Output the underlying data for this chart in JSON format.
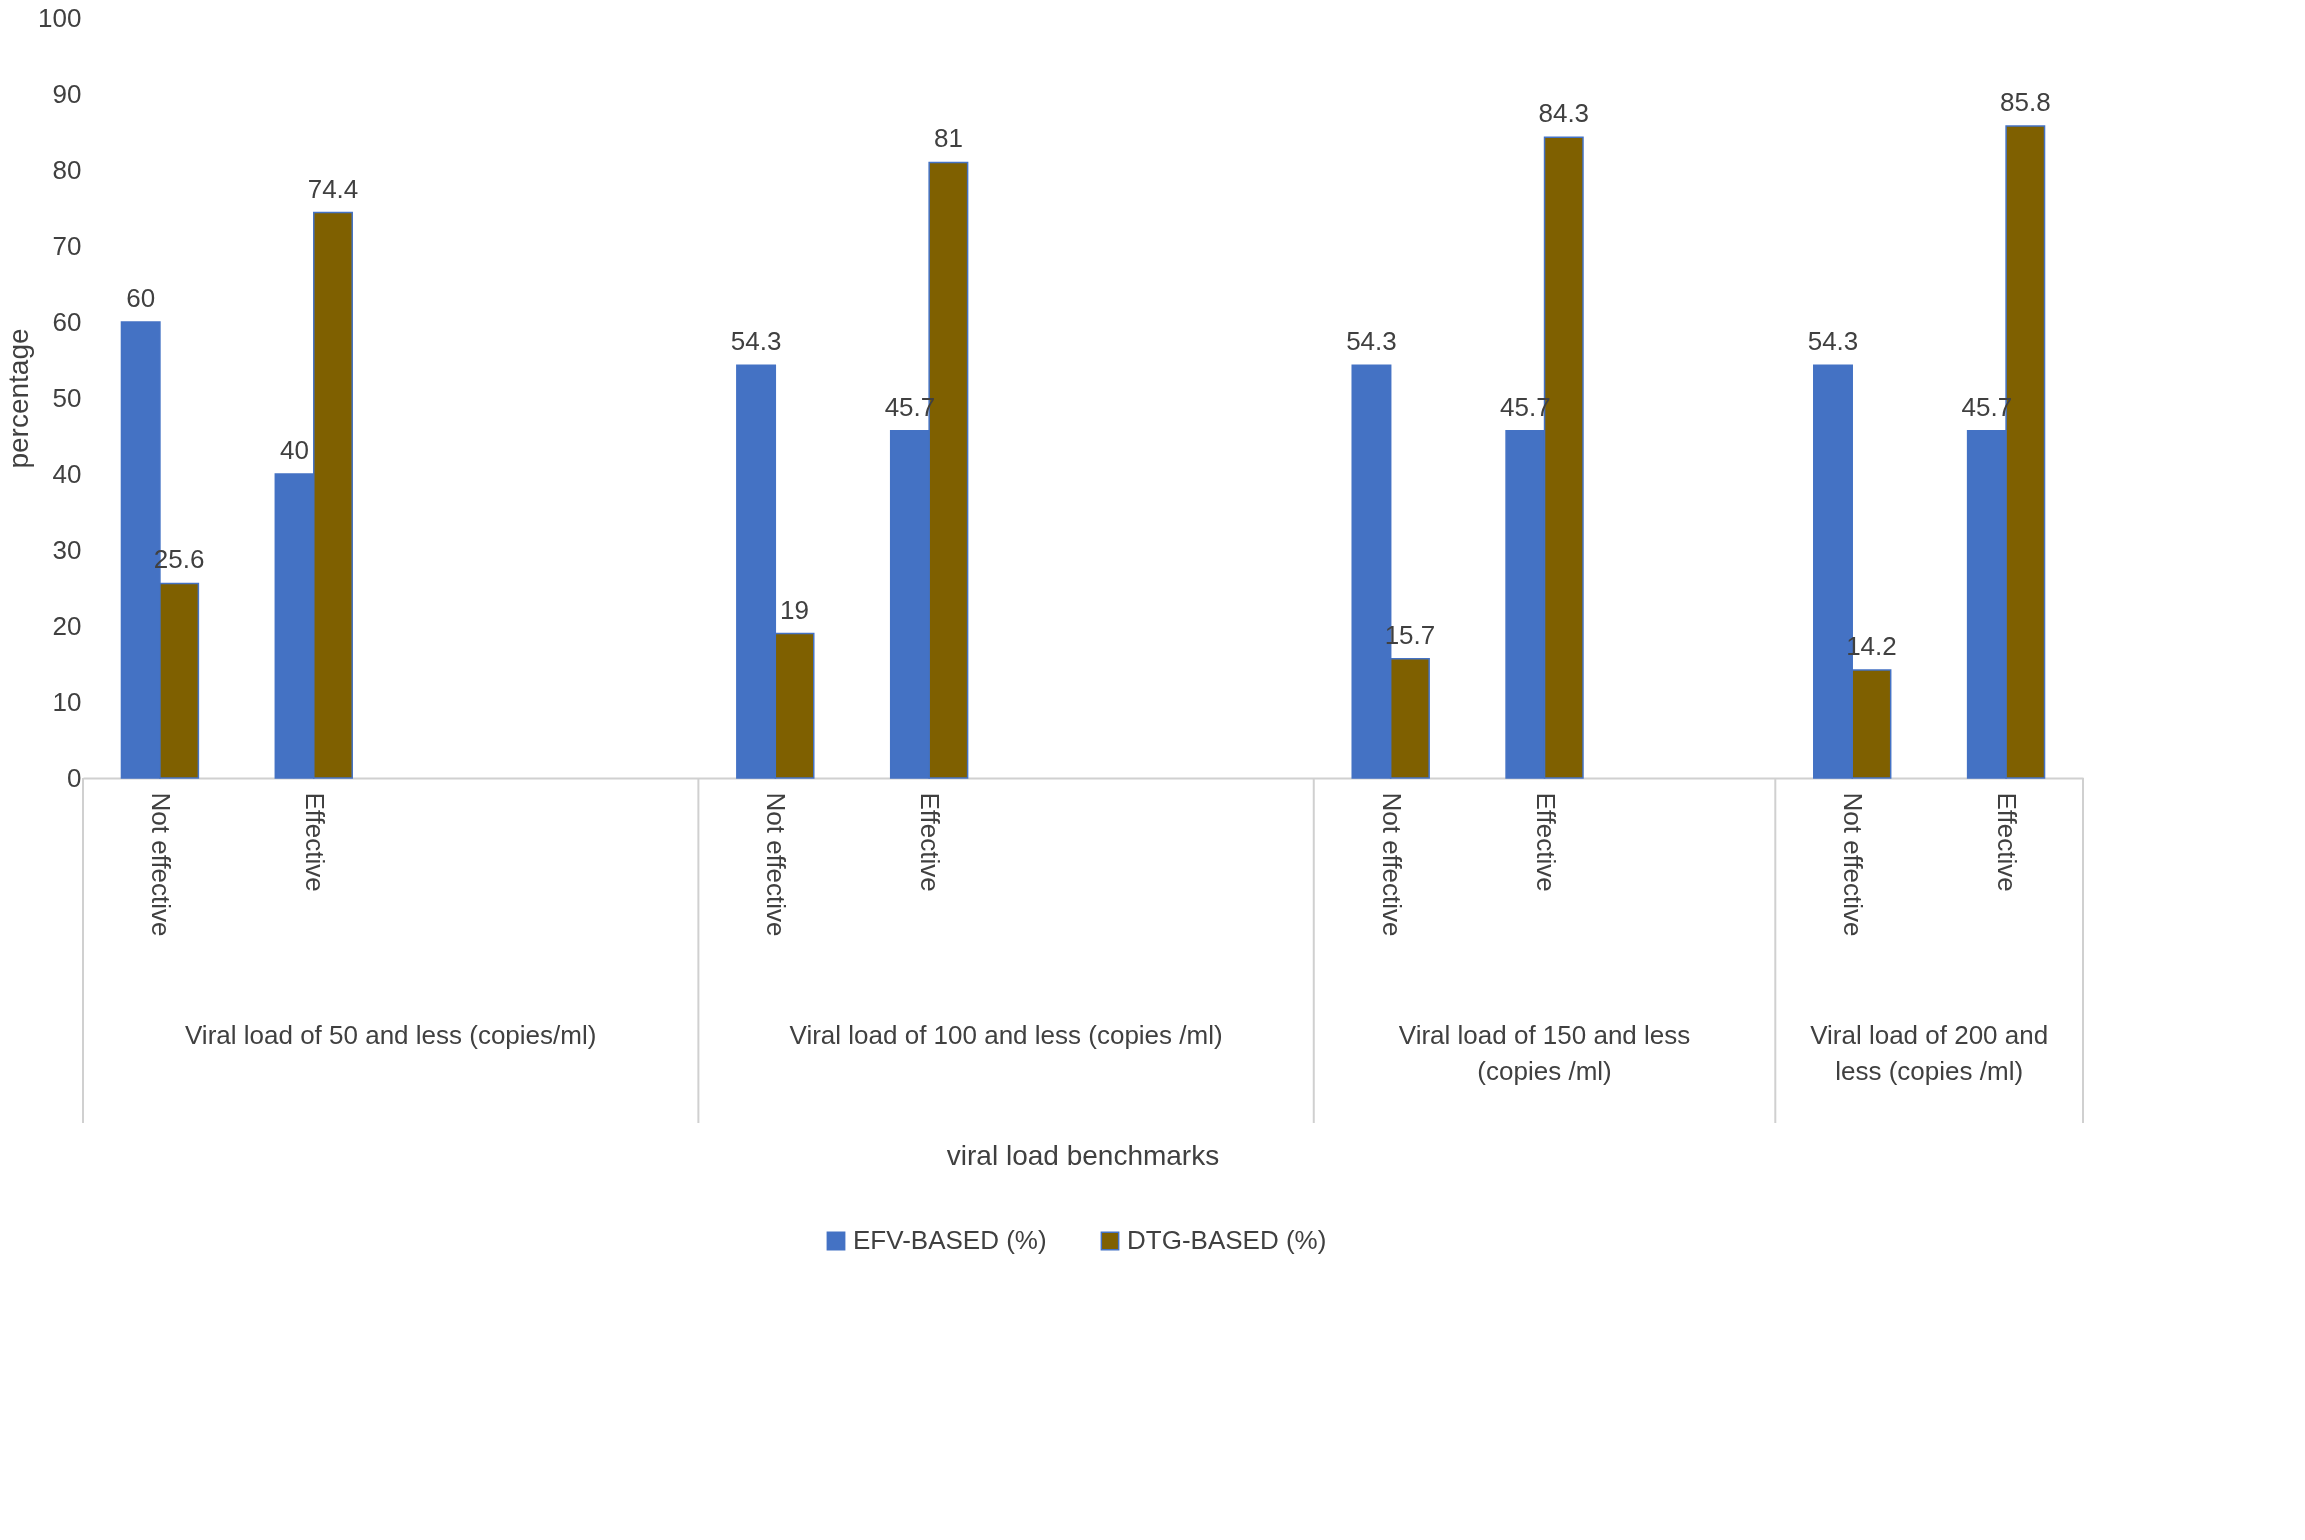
{
  "chart_data": {
    "type": "bar",
    "categories": [
      "Not effective",
      "Effective",
      null,
      null,
      "Not effective",
      "Effective",
      null,
      null,
      "Not effective",
      "Effective",
      null,
      "Not effective",
      "Effective"
    ],
    "series": [
      {
        "name": "EFV-BASED (%)",
        "color": "#4472c4",
        "values": [
          60,
          40,
          null,
          null,
          54.3,
          45.7,
          null,
          null,
          54.3,
          45.7,
          null,
          54.3,
          45.7
        ]
      },
      {
        "name": "DTG-BASED (%)",
        "color": "#7f6000",
        "values": [
          25.6,
          74.4,
          null,
          null,
          19,
          81,
          null,
          null,
          15.7,
          84.3,
          null,
          14.2,
          85.8
        ]
      }
    ],
    "annotations": [
      "Viral load of 50 and less (copies/ml)",
      "Viral load of 100 and less (copies /ml)",
      "Viral load of 150 and less (copies /ml)",
      "Viral load of 200 and less (copies /ml)",
      "viral load benchmarks"
    ],
    "ylabel": "percentage",
    "ylim": [
      0,
      100
    ],
    "yticks": [
      0,
      10,
      20,
      30,
      40,
      50,
      60,
      70,
      80,
      90,
      100
    ],
    "data_labels": true,
    "grid": false,
    "legend": "bottom"
  }
}
